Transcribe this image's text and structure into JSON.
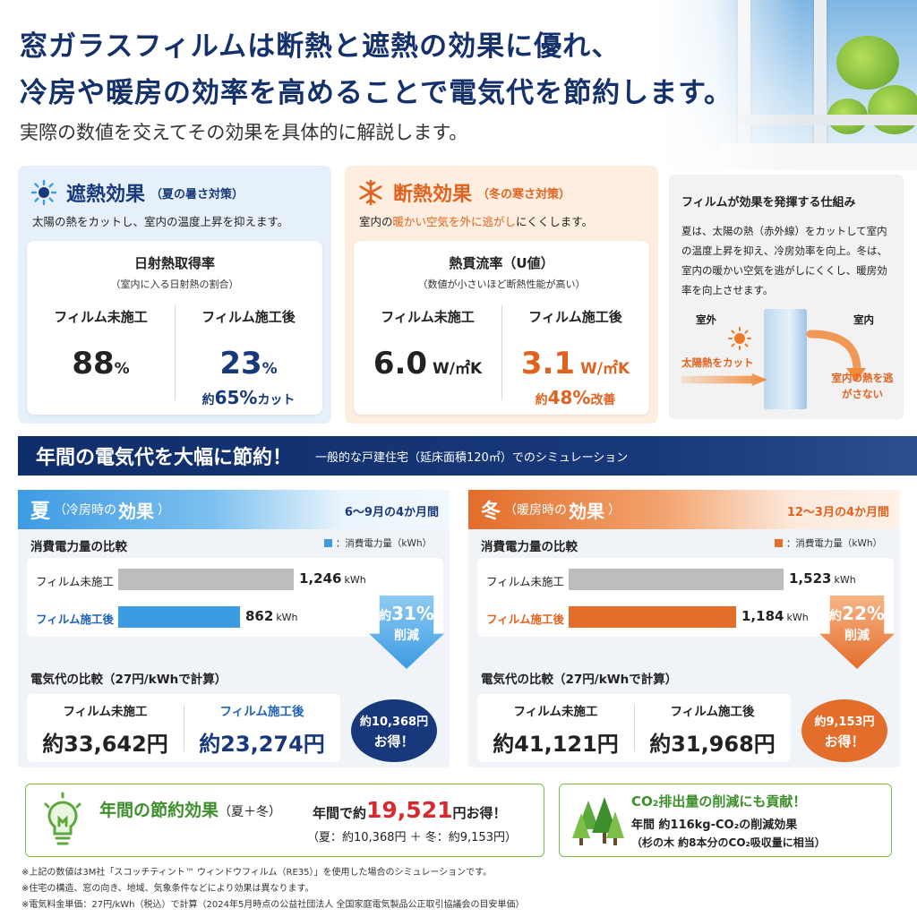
{
  "header": {
    "title_line1": "窓ガラスフィルムは断熱と遮熱の効果に優れ、",
    "title_line2": "冷房や暖房の効率を高めることで電気代を節約します。",
    "subtitle": "実際の数値を交えてその効果を具体的に解説します。"
  },
  "heat_shield": {
    "title": "遮熱効果",
    "paren": "（夏の暑さ対策）",
    "desc": "太陽の熱をカットし、室内の温度上昇を抑えます。",
    "metric_title": "日射熱取得率",
    "metric_note": "（室内に入る日射熱の割合）",
    "before_label": "フィルム未施工",
    "before_value": "88",
    "before_unit": "%",
    "after_label": "フィルム施工後",
    "after_value": "23",
    "after_unit": "%",
    "cut_prefix": "約",
    "cut_value": "65%",
    "cut_suffix": "カット",
    "accent": "#17387a"
  },
  "insulation": {
    "title": "断熱効果",
    "paren": "（冬の寒さ対策）",
    "desc_pre": "室内の",
    "desc_hl": "暖かい空気を外に逃がし",
    "desc_post": "にくくします。",
    "metric_title": "熱貫流率（U値）",
    "metric_note": "（数値が小さいほど断熱性能が高い）",
    "before_label": "フィルム未施工",
    "before_value": "6.0",
    "before_unit": " W/㎡K",
    "after_label": "フィルム施工後",
    "after_value": "3.1",
    "after_unit": " W/㎡K",
    "cut_prefix": "約",
    "cut_value": "48%",
    "cut_suffix": "改善",
    "accent": "#e0621f"
  },
  "mechanism": {
    "title": "フィルムが効果を発揮する仕組み",
    "text": "夏は、太陽の熱（赤外線）をカットして室内の温度上昇を抑え、冷房効率を向上。冬は、室内の暖かい空気を逃がしにくくし、暖房効率を向上させます。",
    "outside": "室外",
    "inside": "室内",
    "heat_cut": "太陽熱をカット",
    "keep_heat": "室内の熱を逃がさない"
  },
  "banner": {
    "main": "年間の電気代を大幅に節約！",
    "sub": "一般的な戸建住宅（延床面積120㎡）でのシミュレーション"
  },
  "summer": {
    "kanji": "夏",
    "paren_open": "（冷房時の",
    "effect": "効果",
    "paren_close": "）",
    "period": "6～9月の4か月間",
    "power_title": "消費電力量の比較",
    "legend": "：消費電力量（kWh）",
    "before_label": "フィルム未施工",
    "after_label": "フィルム施工後",
    "before_kwh": "1,246",
    "after_kwh": "862",
    "kwh_unit": "kWh",
    "reduction_pre": "約",
    "reduction_value": "31%",
    "reduction_label": "削減",
    "cost_title": "電気代の比較（27円/kWhで計算）",
    "cost_before_label": "フィルム未施工",
    "cost_after_label": "フィルム施工後",
    "cost_before": "約33,642円",
    "cost_after": "約23,274円",
    "save_line1": "約10,368円",
    "save_line2": "お得！",
    "accent": "#3d9be3"
  },
  "winter": {
    "kanji": "冬",
    "paren_open": "（暖房時の",
    "effect": "効果",
    "paren_close": "）",
    "period": "12～3月の4か月間",
    "power_title": "消費電力量の比較",
    "legend": "：消費電力量（kWh）",
    "before_label": "フィルム未施工",
    "after_label": "フィルム施工後",
    "before_kwh": "1,523",
    "after_kwh": "1,184",
    "kwh_unit": "kWh",
    "reduction_pre": "約",
    "reduction_value": "22%",
    "reduction_label": "削減",
    "cost_title": "電気代の比較（27円/kWhで計算）",
    "cost_before_label": "フィルム未施工",
    "cost_after_label": "フィルム施工後",
    "cost_before": "約41,121円",
    "cost_after": "約31,968円",
    "save_line1": "約9,153円",
    "save_line2": "お得！",
    "accent": "#e36d2a"
  },
  "annual": {
    "title": "年間の節約効果",
    "paren": "（夏＋冬）",
    "line1_pre": "年間で約",
    "line1_value": "19,521",
    "line1_post": "円お得！",
    "line2": "（夏：約10,368円 ＋ 冬：約9,153円）"
  },
  "co2": {
    "title": "CO₂排出量の削減にも貢献！",
    "line1": "年間 約116kg-CO₂の削減効果",
    "line2": "（杉の木 約8本分のCO₂吸収量に相当）"
  },
  "notes": [
    "※上記の数値は3M社「スコッチティント™ ウィンドウフィルム（RE35）」を使用した場合のシミュレーションです。",
    "※住宅の構造、窓の向き、地域、気象条件などにより効果は異なります。",
    "※電気料金単価：27円/kWh（税込）で計算（2024年5月時点の公益社団法人 全国家庭電気製品公正取引協議会の目安単価）"
  ]
}
